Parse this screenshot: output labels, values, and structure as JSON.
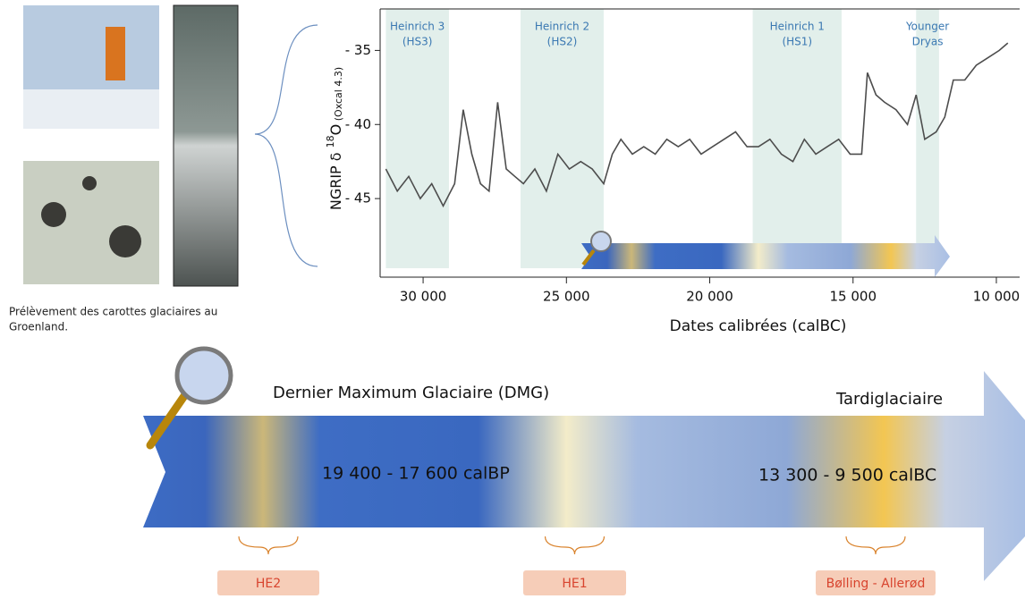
{
  "chart_data": {
    "type": "line",
    "y_label": [
      "NGRIP δ ",
      "18",
      "O",
      " (Oxcal 4.3)"
    ],
    "x_label": "Dates calibrées (calBC)",
    "x": [
      31300,
      30900,
      30500,
      30100,
      29700,
      29300,
      28900,
      28600,
      28300,
      28000,
      27700,
      27400,
      27100,
      26800,
      26500,
      26100,
      25700,
      25300,
      24900,
      24500,
      24100,
      23700,
      23400,
      23100,
      22700,
      22300,
      21900,
      21500,
      21100,
      20700,
      20300,
      19900,
      19500,
      19100,
      18700,
      18300,
      17900,
      17500,
      17100,
      16700,
      16300,
      15900,
      15500,
      15100,
      14700,
      14500,
      14200,
      13900,
      13500,
      13100,
      12800,
      12500,
      12100,
      11800,
      11500,
      11100,
      10700,
      10300,
      9900,
      9600
    ],
    "series": [
      {
        "color": "#4d4d4d",
        "values": [
          -43,
          -44.5,
          -43.5,
          -45,
          -44,
          -45.5,
          -44,
          -39,
          -42,
          -44,
          -44.5,
          -38.5,
          -43,
          -43.5,
          -44,
          -43,
          -44.5,
          -42,
          -43,
          -42.5,
          -43,
          -44,
          -42,
          -41,
          -42,
          -41.5,
          -42,
          -41,
          -41.5,
          -41,
          -42,
          -41.5,
          -41,
          -40.5,
          -41.5,
          -41.5,
          -41,
          -42,
          -42.5,
          -41,
          -42,
          -41.5,
          -41,
          -42,
          -42,
          -36.5,
          -38,
          -38.5,
          -39,
          -40,
          -38,
          -41,
          -40.5,
          -39.5,
          -37,
          -37,
          -36,
          -35.5,
          -35,
          -34.5
        ]
      }
    ],
    "xlim": [
      31500,
      9500
    ],
    "ylim": [
      -32.2,
      -49.7
    ],
    "xticks": [
      {
        "value": 30000,
        "label": "30 000"
      },
      {
        "value": 25000,
        "label": "25 000"
      },
      {
        "value": 20000,
        "label": "20 000"
      },
      {
        "value": 15000,
        "label": "15 000"
      },
      {
        "value": 10000,
        "label": "10 000"
      }
    ],
    "yticks": [
      {
        "value": -35,
        "label": "- 35"
      },
      {
        "value": -40,
        "label": "- 40"
      },
      {
        "value": -45,
        "label": "- 45"
      }
    ],
    "bands": [
      {
        "label": [
          "Heinrich 3",
          "(HS3)"
        ],
        "range": [
          31300,
          29100
        ]
      },
      {
        "label": [
          "Heinrich 2",
          "(HS2)"
        ],
        "range": [
          26600,
          23700
        ]
      },
      {
        "label": [
          "Heinrich 1",
          "(HS1)"
        ],
        "range": [
          18500,
          15400
        ]
      },
      {
        "label": [
          "Younger",
          "Dryas"
        ],
        "range": [
          12800,
          12000
        ]
      }
    ]
  },
  "caption": [
    "Prélèvement des carottes glaciaires au",
    "Groenland."
  ],
  "timeline": {
    "periods": [
      "Dernier Maximum Glaciaire (DMG)",
      "Tardiglaciaire"
    ],
    "ranges": [
      "19 400 - 17 600 calBP",
      "13 300 - 9 500 calBC"
    ],
    "events": [
      "HE2",
      "HE1",
      "Bølling - Allerød"
    ]
  }
}
